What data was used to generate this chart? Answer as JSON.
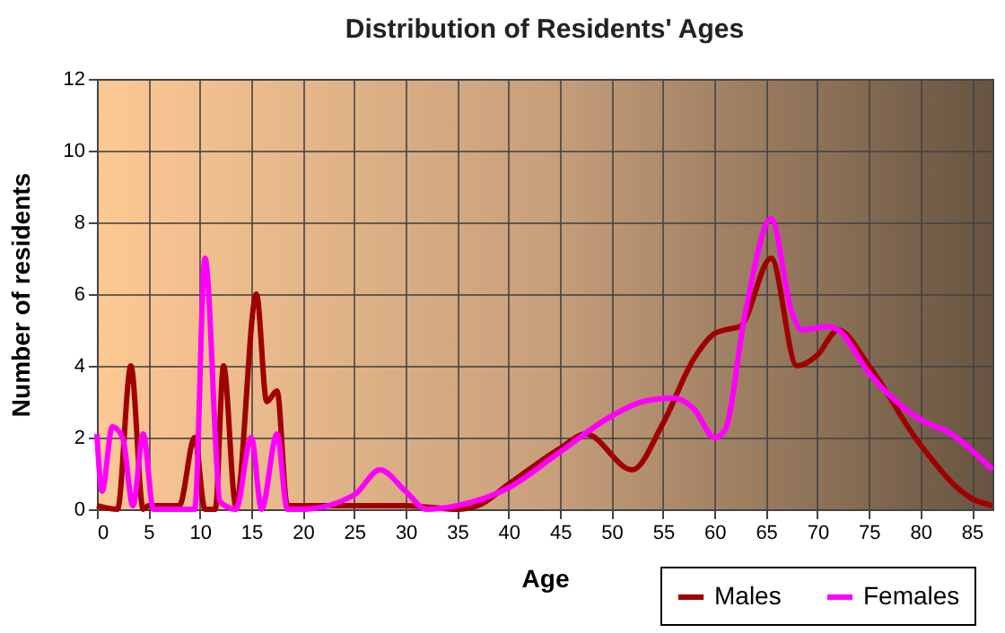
{
  "chart_data": {
    "type": "line",
    "title": "Distribution of Residents' Ages",
    "xlabel": "Age",
    "ylabel": "Number of residents",
    "xlim": [
      0,
      87
    ],
    "xticks": [
      0,
      5,
      10,
      15,
      20,
      25,
      30,
      35,
      40,
      45,
      50,
      55,
      60,
      65,
      70,
      75,
      80,
      85
    ],
    "ylim": [
      0,
      12
    ],
    "yticks": [
      0,
      2,
      4,
      6,
      8,
      10,
      12
    ],
    "grid": true,
    "legend": "bottom right",
    "marker": "none",
    "line_style": "solid",
    "series": [
      {
        "name": "Males",
        "color": "#a00000",
        "x": [
          0,
          2,
          3.3,
          4.5,
          5,
          8,
          9.5,
          10.5,
          11.5,
          12.3,
          13.5,
          15.5,
          16.5,
          17.5,
          18.5,
          20,
          25,
          30,
          35,
          37,
          40,
          45,
          47.5,
          52,
          55,
          58,
          60,
          61,
          62.5,
          65.5,
          68,
          70,
          72,
          75,
          80,
          85,
          87
        ],
        "values": [
          0.1,
          0,
          4,
          0,
          0.1,
          0.1,
          2,
          0,
          0,
          4,
          0.1,
          6,
          3,
          3.3,
          0.1,
          0.1,
          0.1,
          0.1,
          0,
          0.1,
          0.7,
          1.7,
          2.1,
          1.1,
          2.4,
          4.2,
          4.9,
          5,
          5.1,
          7,
          4,
          4.3,
          5,
          4,
          1.8,
          0.3,
          0.1
        ]
      },
      {
        "name": "Females",
        "color": "#ff00ff",
        "x": [
          0,
          0.5,
          1.5,
          2.5,
          3.5,
          4.5,
          5.5,
          9.5,
          10.5,
          12,
          13.5,
          15,
          16,
          17.5,
          18.5,
          20,
          25,
          27.5,
          30,
          32,
          35,
          40,
          45,
          50,
          53,
          56,
          58,
          60,
          61,
          63,
          65.5,
          67.5,
          68.5,
          71,
          72,
          75,
          80,
          83,
          87
        ],
        "values": [
          2.1,
          0.5,
          2.3,
          2,
          0.1,
          2.1,
          0,
          0,
          7,
          0.2,
          0,
          2,
          0,
          2.1,
          0,
          0,
          0.4,
          1.1,
          0.5,
          0,
          0.1,
          0.6,
          1.6,
          2.6,
          3,
          3.1,
          2.8,
          2,
          2.2,
          5.5,
          8.1,
          5.5,
          5,
          5.1,
          5,
          3.8,
          2.5,
          2.1,
          1.1
        ]
      }
    ]
  }
}
